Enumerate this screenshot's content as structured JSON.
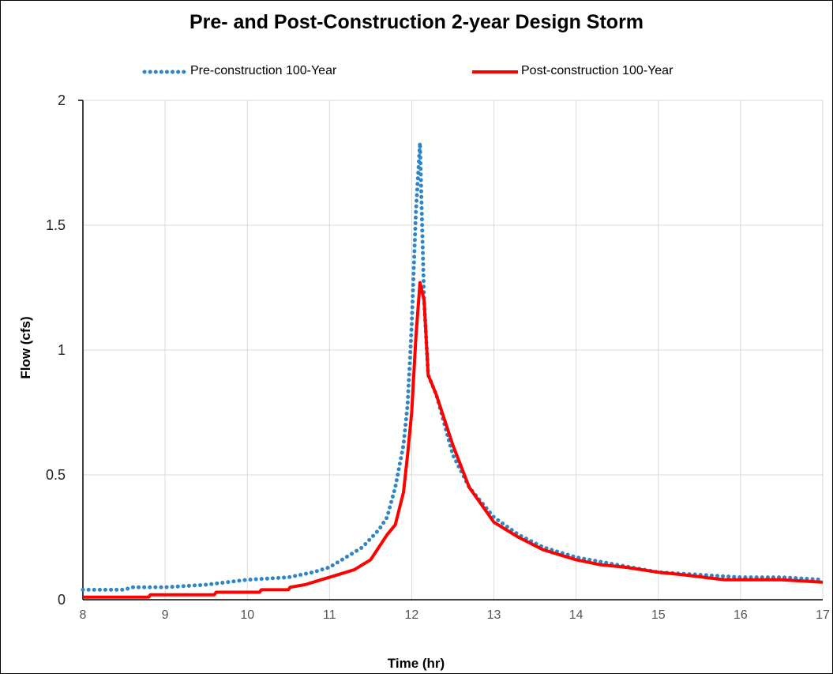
{
  "chart_data": {
    "type": "line",
    "title": "Pre- and Post-Construction 2-year Design Storm",
    "xlabel": "Time (hr)",
    "ylabel": "Flow (cfs)",
    "xlim": [
      8,
      17
    ],
    "ylim": [
      0,
      2
    ],
    "x_ticks": [
      "8",
      "9",
      "10",
      "11",
      "12",
      "13",
      "14",
      "15",
      "16",
      "17"
    ],
    "y_ticks": [
      "0",
      "0.5",
      "1",
      "1.5",
      "2"
    ],
    "grid": true,
    "legend_position": "top",
    "series": [
      {
        "name": "Pre-construction 100-Year",
        "color": "#2e86c8",
        "style": "dotted",
        "x": [
          8,
          8.5,
          8.6,
          9,
          9.5,
          10,
          10.5,
          10.8,
          11,
          11.2,
          11.4,
          11.6,
          11.7,
          11.8,
          11.9,
          11.95,
          12,
          12.05,
          12.1,
          12.15,
          12.2,
          12.3,
          12.4,
          12.5,
          12.7,
          13,
          13.3,
          13.6,
          14,
          14.5,
          15,
          15.5,
          16,
          16.5,
          17
        ],
        "y": [
          0.04,
          0.04,
          0.05,
          0.05,
          0.06,
          0.08,
          0.09,
          0.11,
          0.13,
          0.17,
          0.21,
          0.28,
          0.33,
          0.45,
          0.62,
          0.78,
          1.1,
          1.55,
          1.83,
          1.2,
          0.9,
          0.82,
          0.7,
          0.58,
          0.45,
          0.33,
          0.26,
          0.21,
          0.17,
          0.14,
          0.11,
          0.1,
          0.09,
          0.09,
          0.08
        ]
      },
      {
        "name": "Post-construction 100-Year",
        "color": "#ff0000",
        "style": "solid",
        "x": [
          8,
          8.8,
          8.82,
          9.6,
          9.62,
          10.15,
          10.17,
          10.5,
          10.52,
          10.7,
          10.9,
          11.1,
          11.3,
          11.5,
          11.6,
          11.7,
          11.8,
          11.9,
          11.95,
          12,
          12.05,
          12.1,
          12.15,
          12.2,
          12.25,
          12.3,
          12.4,
          12.5,
          12.7,
          13,
          13.3,
          13.6,
          14,
          14.3,
          14.6,
          15,
          15.3,
          15.8,
          16.5,
          17
        ],
        "y": [
          0.01,
          0.01,
          0.02,
          0.02,
          0.03,
          0.03,
          0.04,
          0.04,
          0.05,
          0.06,
          0.08,
          0.1,
          0.12,
          0.16,
          0.21,
          0.26,
          0.3,
          0.43,
          0.58,
          0.75,
          1.05,
          1.27,
          1.2,
          0.9,
          0.86,
          0.82,
          0.72,
          0.62,
          0.45,
          0.31,
          0.25,
          0.2,
          0.16,
          0.14,
          0.13,
          0.11,
          0.1,
          0.08,
          0.08,
          0.07
        ]
      }
    ]
  }
}
